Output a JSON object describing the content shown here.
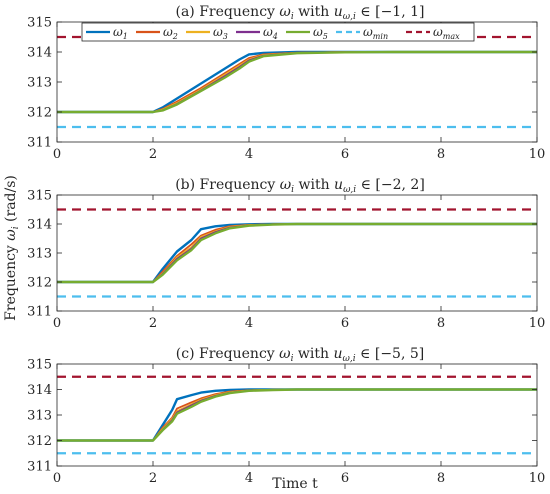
{
  "figure": {
    "ylabel": "Frequency ωi (rad/s)",
    "ylabel_main": "Frequency ",
    "ylabel_sym": "ω",
    "ylabel_sub": "i",
    "ylabel_unit": " (rad/s)",
    "xlabel": "Time t"
  },
  "legend": {
    "placement": "top",
    "entries": [
      {
        "sym": "ω",
        "sub": "1",
        "color": "#0072BD",
        "dash": false
      },
      {
        "sym": "ω",
        "sub": "2",
        "color": "#D95319",
        "dash": false
      },
      {
        "sym": "ω",
        "sub": "3",
        "color": "#EDB120",
        "dash": false
      },
      {
        "sym": "ω",
        "sub": "4",
        "color": "#7E2F8E",
        "dash": false
      },
      {
        "sym": "ω",
        "sub": "5",
        "color": "#77AC30",
        "dash": false
      },
      {
        "sym": "ω",
        "sub": "min",
        "color": "#4DBEEE",
        "dash": true
      },
      {
        "sym": "ω",
        "sub": "max",
        "color": "#A2142F",
        "dash": true
      }
    ]
  },
  "chart_data": [
    {
      "type": "line",
      "title": "(a) Frequency ωi with uω,i ∈ [−1, 1]",
      "title_parts": {
        "prefix": "(a) Frequency ",
        "u_range": "[−1, 1]"
      },
      "xlim": [
        0,
        10
      ],
      "ylim": [
        311,
        315
      ],
      "xticks": [
        0,
        2,
        4,
        6,
        8,
        10
      ],
      "yticks": [
        311,
        312,
        313,
        314,
        315
      ],
      "grid": false,
      "x": [
        0,
        2,
        2.2,
        2.5,
        3.0,
        3.5,
        3.8,
        4.0,
        4.3,
        5.0,
        6.0,
        7.0,
        10.0
      ],
      "series": [
        {
          "name": "ω1",
          "values": [
            312,
            312,
            312.15,
            312.45,
            312.95,
            313.45,
            313.75,
            313.92,
            313.97,
            314.0,
            314.0,
            314.0,
            314.0
          ]
        },
        {
          "name": "ω2",
          "values": [
            312,
            312,
            312.1,
            312.35,
            312.8,
            313.3,
            313.6,
            313.8,
            313.92,
            313.98,
            314.0,
            314.0,
            314.0
          ]
        },
        {
          "name": "ω3",
          "values": [
            312,
            312,
            312.08,
            312.3,
            312.75,
            313.25,
            313.55,
            313.75,
            313.9,
            313.97,
            314.0,
            314.0,
            314.0
          ]
        },
        {
          "name": "ω4",
          "values": [
            312,
            312,
            312.06,
            312.27,
            312.72,
            313.2,
            313.5,
            313.72,
            313.88,
            313.97,
            314.0,
            314.0,
            314.0
          ]
        },
        {
          "name": "ω5",
          "values": [
            312,
            312,
            312.05,
            312.25,
            312.7,
            313.15,
            313.45,
            313.68,
            313.86,
            313.96,
            313.99,
            314.0,
            314.0
          ]
        }
      ],
      "omega_min": 311.5,
      "omega_max": 314.5
    },
    {
      "type": "line",
      "title": "(b) Frequency ωi with uω,i ∈ [−2, 2]",
      "title_parts": {
        "prefix": "(b) Frequency ",
        "u_range": "[−2, 2]"
      },
      "xlim": [
        0,
        10
      ],
      "ylim": [
        311,
        315
      ],
      "xticks": [
        0,
        2,
        4,
        6,
        8,
        10
      ],
      "yticks": [
        311,
        312,
        313,
        314,
        315
      ],
      "grid": false,
      "x": [
        0,
        2,
        2.2,
        2.5,
        2.8,
        3.0,
        3.3,
        3.6,
        4.0,
        4.5,
        5.0,
        6.0,
        10.0
      ],
      "series": [
        {
          "name": "ω1",
          "values": [
            312,
            312,
            312.45,
            313.05,
            313.45,
            313.82,
            313.92,
            313.97,
            313.99,
            314.0,
            314.0,
            314.0,
            314.0
          ]
        },
        {
          "name": "ω2",
          "values": [
            312,
            312,
            312.35,
            312.9,
            313.3,
            313.6,
            313.8,
            313.92,
            313.97,
            313.99,
            314.0,
            314.0,
            314.0
          ]
        },
        {
          "name": "ω3",
          "values": [
            312,
            312,
            312.3,
            312.85,
            313.2,
            313.55,
            313.75,
            313.9,
            313.96,
            313.99,
            314.0,
            314.0,
            314.0
          ]
        },
        {
          "name": "ω4",
          "values": [
            312,
            312,
            312.28,
            312.8,
            313.15,
            313.5,
            313.72,
            313.88,
            313.95,
            313.99,
            314.0,
            314.0,
            314.0
          ]
        },
        {
          "name": "ω5",
          "values": [
            312,
            312,
            312.25,
            312.75,
            313.1,
            313.45,
            313.68,
            313.85,
            313.94,
            313.98,
            314.0,
            314.0,
            314.0
          ]
        }
      ],
      "omega_min": 311.5,
      "omega_max": 314.5
    },
    {
      "type": "line",
      "title": "(c) Frequency ωi with uω,i ∈ [−5, 5]",
      "title_parts": {
        "prefix": "(c) Frequency ",
        "u_range": "[−5, 5]"
      },
      "xlim": [
        0,
        10
      ],
      "ylim": [
        311,
        315
      ],
      "xticks": [
        0,
        2,
        4,
        6,
        8,
        10
      ],
      "yticks": [
        311,
        312,
        313,
        314,
        315
      ],
      "grid": false,
      "x": [
        0,
        2,
        2.2,
        2.4,
        2.5,
        2.8,
        3.0,
        3.3,
        3.6,
        4.0,
        4.5,
        5.0,
        10.0
      ],
      "series": [
        {
          "name": "ω1",
          "values": [
            312,
            312,
            312.6,
            313.2,
            313.62,
            313.78,
            313.88,
            313.95,
            313.98,
            314.0,
            314.0,
            314.0,
            314.0
          ]
        },
        {
          "name": "ω2",
          "values": [
            312,
            312,
            312.5,
            312.9,
            313.25,
            313.5,
            313.65,
            313.82,
            313.92,
            313.97,
            313.99,
            314.0,
            314.0
          ]
        },
        {
          "name": "ω3",
          "values": [
            312,
            312,
            312.45,
            312.85,
            313.15,
            313.42,
            313.6,
            313.78,
            313.9,
            313.96,
            313.99,
            314.0,
            314.0
          ]
        },
        {
          "name": "ω4",
          "values": [
            312,
            312,
            312.42,
            312.8,
            313.1,
            313.38,
            313.56,
            313.75,
            313.88,
            313.95,
            313.99,
            314.0,
            314.0
          ]
        },
        {
          "name": "ω5",
          "values": [
            312,
            312,
            312.4,
            312.75,
            313.05,
            313.32,
            313.52,
            313.72,
            313.86,
            313.95,
            313.98,
            314.0,
            314.0
          ]
        }
      ],
      "omega_min": 311.5,
      "omega_max": 314.5
    }
  ]
}
